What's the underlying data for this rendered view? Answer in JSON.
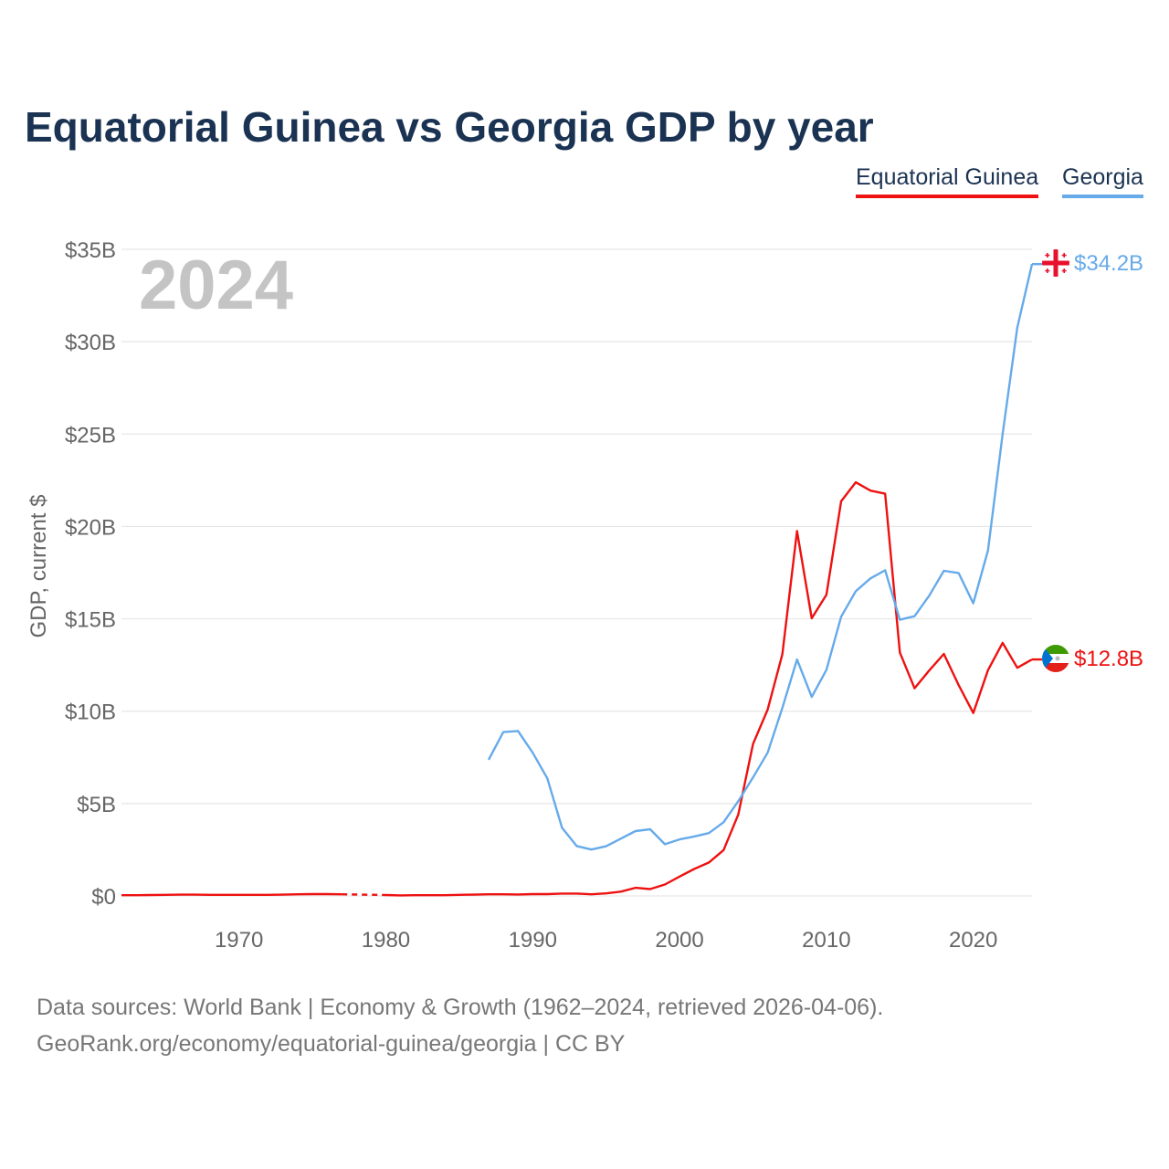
{
  "title": "Equatorial Guinea vs Georgia GDP by year",
  "legend": {
    "equatorial_guinea": "Equatorial Guinea",
    "georgia": "Georgia"
  },
  "year_watermark": "2024",
  "colors": {
    "equatorial_guinea": "#ee1111",
    "georgia": "#66aaea",
    "title": "#1b3352",
    "axis_text": "#666666",
    "grid": "#e6e6e6",
    "watermark": "#c4c4c4"
  },
  "footer": {
    "line1": "Data sources: World Bank | Economy & Growth (1962–2024, retrieved 2026-04-06).",
    "line2": "GeoRank.org/economy/equatorial-guinea/georgia | CC BY"
  },
  "chart_data": {
    "type": "line",
    "title": "Equatorial Guinea vs Georgia GDP by year",
    "xlabel": "",
    "ylabel": "GDP, current $",
    "xlim": [
      1962,
      2024
    ],
    "ylim": [
      0,
      35
    ],
    "x_ticks": [
      1970,
      1980,
      1990,
      2000,
      2010,
      2020
    ],
    "x_tick_labels": [
      "1970",
      "1980",
      "1990",
      "2000",
      "2010",
      "2020"
    ],
    "y_ticks": [
      0,
      5,
      10,
      15,
      20,
      25,
      30,
      35
    ],
    "y_tick_labels": [
      "$0",
      "$5B",
      "$10B",
      "$15B",
      "$20B",
      "$25B",
      "$30B",
      "$35B"
    ],
    "grid": true,
    "legend_position": "top-right",
    "units": "billions of current US$",
    "series": [
      {
        "name": "Equatorial Guinea",
        "end_label": "$12.8B",
        "flag": "equatorial-guinea-flag-icon",
        "gap": [
          1977,
          1980
        ],
        "x": [
          1962,
          1963,
          1964,
          1965,
          1966,
          1967,
          1968,
          1969,
          1970,
          1971,
          1972,
          1973,
          1974,
          1975,
          1976,
          1977,
          1980,
          1981,
          1982,
          1983,
          1984,
          1985,
          1986,
          1987,
          1988,
          1989,
          1990,
          1991,
          1992,
          1993,
          1994,
          1995,
          1996,
          1997,
          1998,
          1999,
          2000,
          2001,
          2002,
          2003,
          2004,
          2005,
          2006,
          2007,
          2008,
          2009,
          2010,
          2011,
          2012,
          2013,
          2014,
          2015,
          2016,
          2017,
          2018,
          2019,
          2020,
          2021,
          2022,
          2023,
          2024
        ],
        "values": [
          0.04,
          0.04,
          0.05,
          0.06,
          0.07,
          0.07,
          0.06,
          0.06,
          0.06,
          0.06,
          0.06,
          0.07,
          0.09,
          0.1,
          0.1,
          0.09,
          0.05,
          0.03,
          0.04,
          0.04,
          0.04,
          0.06,
          0.07,
          0.09,
          0.09,
          0.08,
          0.1,
          0.1,
          0.13,
          0.13,
          0.09,
          0.14,
          0.23,
          0.44,
          0.37,
          0.62,
          1.05,
          1.46,
          1.81,
          2.48,
          4.41,
          8.22,
          10.08,
          13.07,
          19.75,
          15.03,
          16.3,
          21.36,
          22.39,
          21.94,
          21.77,
          13.18,
          11.24,
          12.2,
          13.1,
          11.42,
          9.9,
          12.22,
          13.7,
          12.35,
          12.8
        ]
      },
      {
        "name": "Georgia",
        "end_label": "$34.2B",
        "flag": "georgia-flag-icon",
        "x": [
          1987,
          1988,
          1989,
          1990,
          1991,
          1992,
          1993,
          1994,
          1995,
          1996,
          1997,
          1998,
          1999,
          2000,
          2001,
          2002,
          2003,
          2004,
          2005,
          2006,
          2007,
          2008,
          2009,
          2010,
          2011,
          2012,
          2013,
          2014,
          2015,
          2016,
          2017,
          2018,
          2019,
          2020,
          2021,
          2022,
          2023,
          2024
        ],
        "values": [
          7.37,
          8.87,
          8.93,
          7.75,
          6.36,
          3.69,
          2.7,
          2.51,
          2.69,
          3.1,
          3.51,
          3.61,
          2.8,
          3.06,
          3.22,
          3.4,
          3.99,
          5.13,
          6.41,
          7.75,
          10.17,
          12.8,
          10.77,
          12.24,
          15.11,
          16.49,
          17.19,
          17.63,
          14.95,
          15.14,
          16.25,
          17.6,
          17.48,
          15.84,
          18.7,
          24.99,
          30.77,
          34.2
        ]
      }
    ]
  }
}
